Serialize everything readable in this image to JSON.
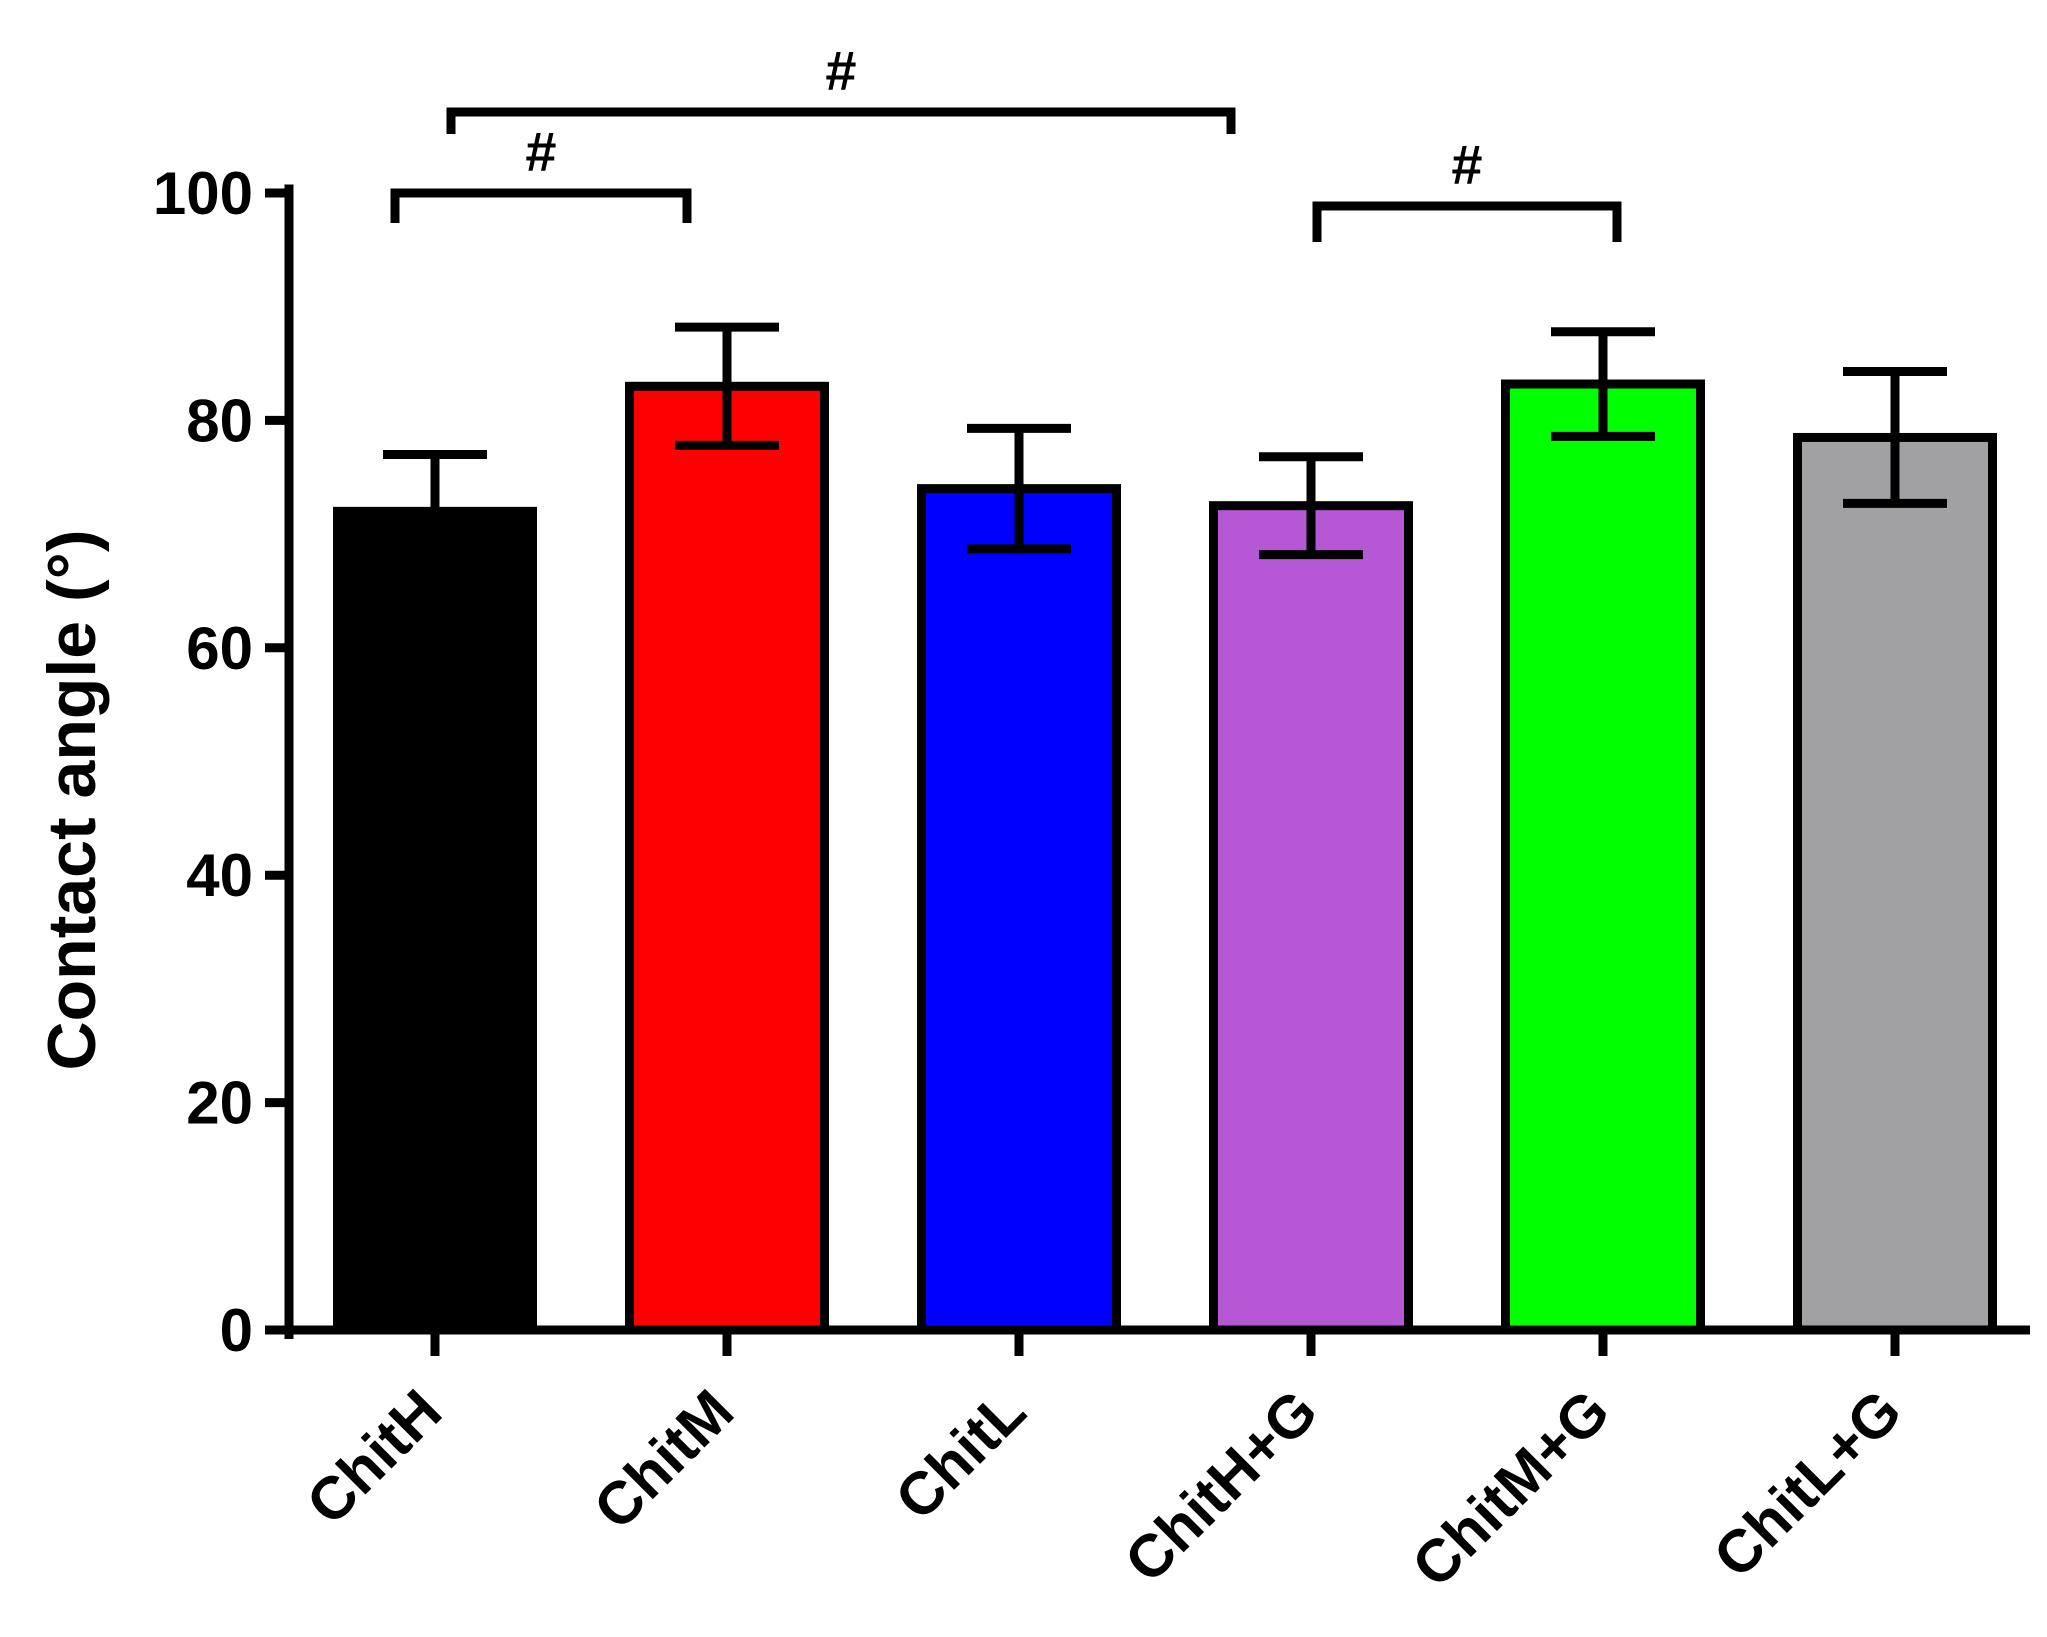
{
  "chart_data": {
    "type": "bar",
    "title": "",
    "xlabel": "",
    "ylabel": "Contact angle (°)",
    "ylim": [
      0,
      100
    ],
    "yticks": [
      0,
      20,
      40,
      60,
      80,
      100
    ],
    "grid": false,
    "legend": "none",
    "categories": [
      "ChitH",
      "ChitM",
      "ChitL",
      "ChitH+G",
      "ChitM+G",
      "ChitL+G"
    ],
    "values": [
      72,
      83,
      74,
      72.5,
      83.2,
      78.5
    ],
    "errors": [
      5,
      5.2,
      5.3,
      4.3,
      4.6,
      5.8
    ],
    "colors": [
      "#000000",
      "#ff0000",
      "#0000ff",
      "#b657d6",
      "#00ff00",
      "#a1a1a4"
    ],
    "significance": [
      {
        "from": "ChitH",
        "to": "ChitM",
        "label": "#"
      },
      {
        "from": "ChitH",
        "to": "ChitH+G",
        "label": "#"
      },
      {
        "from": "ChitH+G",
        "to": "ChitM+G",
        "label": "#"
      }
    ]
  }
}
